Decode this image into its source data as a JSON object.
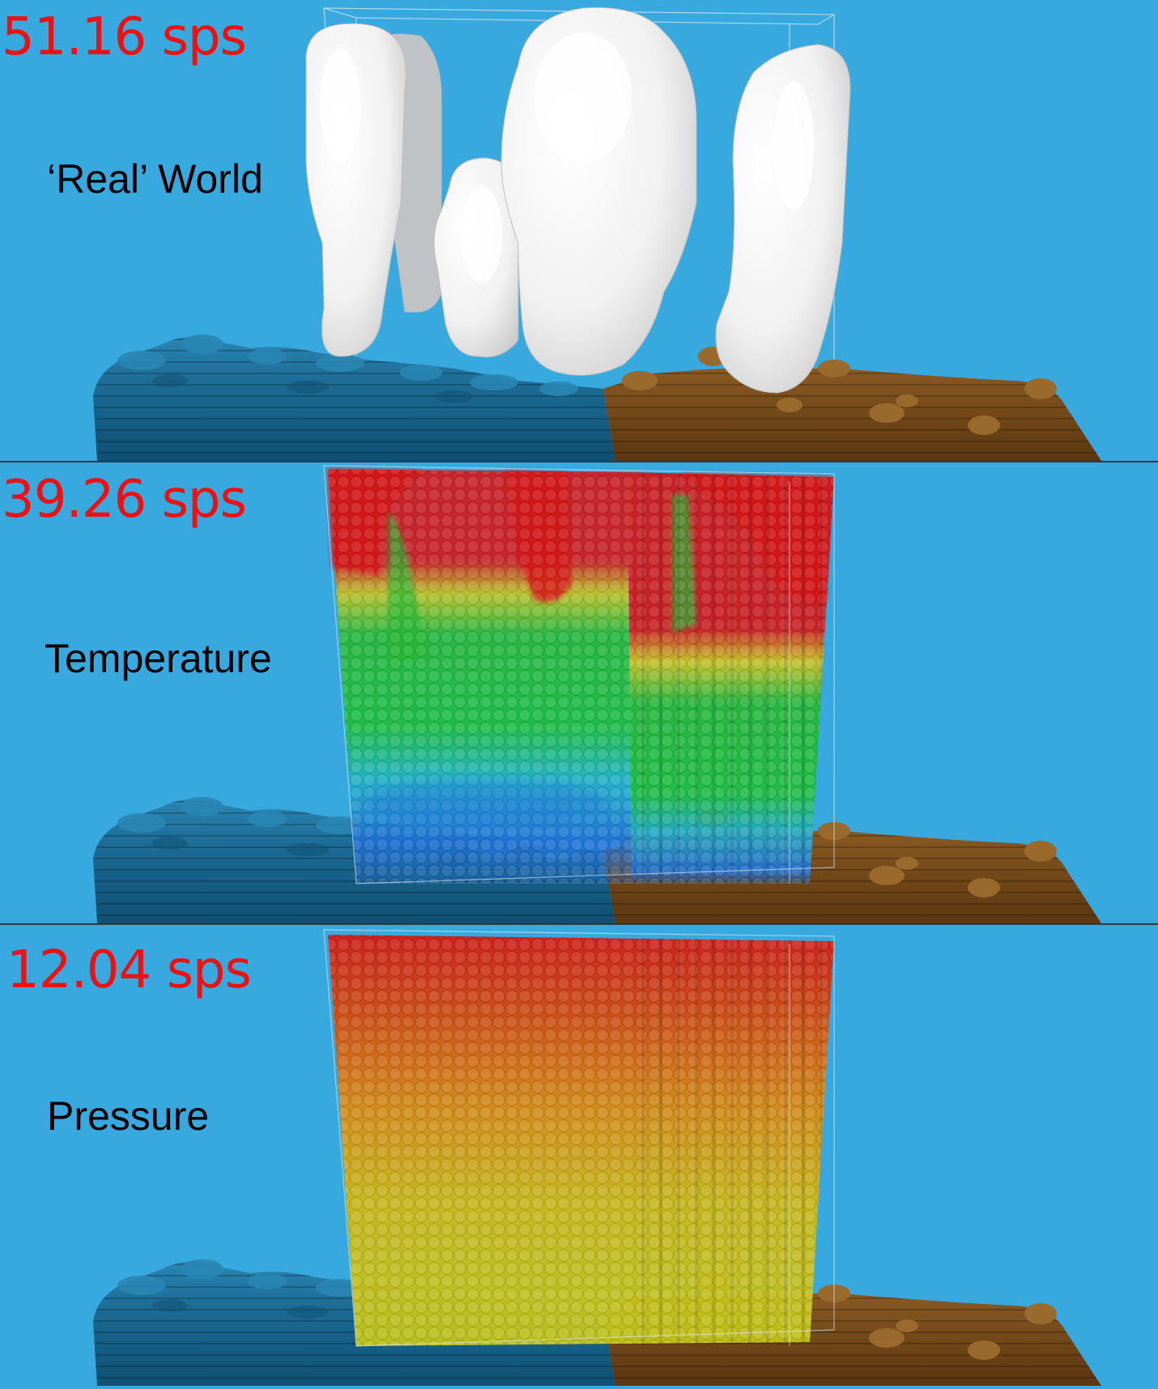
{
  "panels": [
    {
      "id": "real-world",
      "rate": "51.16 sps",
      "label": "‘Real’ World",
      "field": "clouds"
    },
    {
      "id": "temperature",
      "rate": "39.26 sps",
      "label": "Temperature",
      "field": "temperature"
    },
    {
      "id": "pressure",
      "rate": "12.04 sps",
      "label": "Pressure",
      "field": "pressure"
    }
  ],
  "colors": {
    "sky": "#38a9df",
    "ocean": "#1e6f9a",
    "land": "#7a4a1a",
    "cloud": "#f3f3f3",
    "rate_text": "#ee1111",
    "label_text": "#000000",
    "temperature_scale": [
      "#1d6fd6",
      "#20b6c8",
      "#1fbf3a",
      "#e0d21a",
      "#d61717"
    ],
    "pressure_scale": [
      "#c9c317",
      "#d88a10",
      "#d41a12"
    ]
  },
  "icons": [
    "ocean-terrain",
    "land-terrain",
    "cloud-volume",
    "temperature-volume",
    "pressure-volume",
    "bounding-box"
  ]
}
